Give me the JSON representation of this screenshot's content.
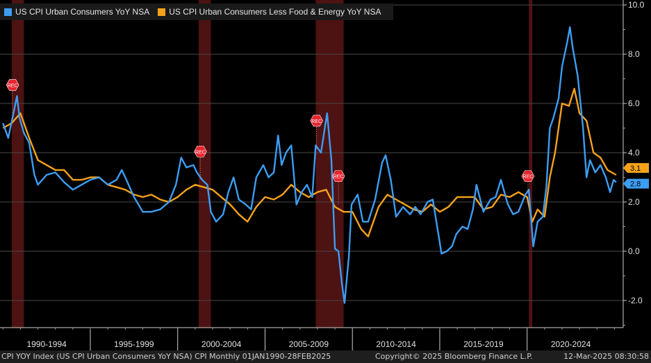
{
  "chart_data": {
    "type": "line",
    "title": "",
    "xlabel": "",
    "ylabel": "",
    "xlim": [
      1989.83,
      2025.5
    ],
    "ylim": [
      -3.1,
      10.2
    ],
    "y_ticks": [
      "-2.0",
      "0.0",
      "2.0",
      "4.0",
      "6.0",
      "8.0",
      "10.0"
    ],
    "y_tick_values": [
      -2,
      0,
      2,
      4,
      6,
      8,
      10
    ],
    "x_tick_labels": [
      "1990-1994",
      "1995-1999",
      "2000-2004",
      "2005-2009",
      "2010-2014",
      "2015-2019",
      "2020-2024"
    ],
    "x_periods": [
      [
        1990,
        1995
      ],
      [
        1995,
        2000
      ],
      [
        2000,
        2005
      ],
      [
        2005,
        2010
      ],
      [
        2010,
        2015
      ],
      [
        2015,
        2020
      ],
      [
        2020,
        2025
      ]
    ],
    "grid": true,
    "legend_position": "top-left",
    "recessions": [
      {
        "start": 1990.5,
        "end": 1991.2,
        "marker_x": 1990.55,
        "marker_y": 6.75,
        "label": "REC"
      },
      {
        "start": 2001.2,
        "end": 2001.9,
        "marker_x": 2001.3,
        "marker_y": 4.05,
        "label": "REC"
      },
      {
        "start": 2007.9,
        "end": 2009.5,
        "marker_x": 2007.95,
        "marker_y": 5.3,
        "label": "REC"
      },
      {
        "start": 2007.9,
        "end": 2009.5,
        "marker_x": 2009.2,
        "marker_y": 3.05,
        "label": "REC"
      },
      {
        "start": 2020.1,
        "end": 2020.3,
        "marker_x": 2020.05,
        "marker_y": 3.05,
        "label": "REC"
      }
    ],
    "series": [
      {
        "name": "US CPI Urban Consumers YoY NSA",
        "color": "#3d9df2",
        "last_value": "2.8",
        "x": [
          1990.0,
          1990.3,
          1990.6,
          1990.8,
          1990.95,
          1991.2,
          1991.5,
          1991.8,
          1992.0,
          1992.5,
          1993.0,
          1993.5,
          1994.0,
          1994.5,
          1995.0,
          1995.5,
          1996.0,
          1996.5,
          1996.8,
          1997.0,
          1997.5,
          1998.0,
          1998.5,
          1999.0,
          1999.5,
          1999.9,
          2000.2,
          2000.5,
          2000.9,
          2001.1,
          2001.4,
          2001.7,
          2001.9,
          2002.2,
          2002.6,
          2002.9,
          2003.2,
          2003.5,
          2003.9,
          2004.2,
          2004.5,
          2004.9,
          2005.2,
          2005.5,
          2005.75,
          2005.95,
          2006.2,
          2006.5,
          2006.8,
          2007.1,
          2007.4,
          2007.7,
          2007.9,
          2008.2,
          2008.55,
          2008.8,
          2009.0,
          2009.2,
          2009.4,
          2009.55,
          2009.8,
          2009.95,
          2010.3,
          2010.6,
          2010.9,
          2011.3,
          2011.7,
          2011.9,
          2012.2,
          2012.5,
          2012.9,
          2013.3,
          2013.6,
          2013.9,
          2014.3,
          2014.6,
          2014.9,
          2015.1,
          2015.4,
          2015.7,
          2015.95,
          2016.3,
          2016.6,
          2016.9,
          2017.1,
          2017.5,
          2017.9,
          2018.2,
          2018.5,
          2018.9,
          2019.2,
          2019.5,
          2019.9,
          2020.1,
          2020.35,
          2020.6,
          2020.9,
          2021.1,
          2021.3,
          2021.5,
          2021.8,
          2022.0,
          2022.3,
          2022.45,
          2022.6,
          2022.9,
          2023.2,
          2023.4,
          2023.6,
          2023.9,
          2024.2,
          2024.5,
          2024.75,
          2024.95,
          2025.1
        ],
        "values": [
          5.2,
          4.6,
          5.6,
          6.3,
          5.4,
          4.8,
          4.4,
          3.1,
          2.7,
          3.1,
          3.2,
          2.8,
          2.5,
          2.7,
          2.9,
          3.0,
          2.7,
          2.9,
          3.3,
          3.0,
          2.2,
          1.6,
          1.6,
          1.7,
          2.0,
          2.7,
          3.8,
          3.4,
          3.5,
          3.2,
          2.9,
          2.7,
          1.6,
          1.2,
          1.5,
          2.4,
          3.0,
          2.1,
          1.9,
          1.7,
          3.0,
          3.5,
          3.0,
          3.2,
          4.7,
          3.5,
          4.0,
          4.3,
          1.9,
          2.4,
          2.7,
          2.2,
          4.3,
          4.0,
          5.6,
          3.7,
          0.1,
          0.0,
          -1.3,
          -2.1,
          -0.2,
          1.9,
          2.3,
          1.2,
          1.2,
          2.1,
          3.6,
          3.9,
          2.9,
          1.4,
          1.8,
          1.5,
          1.8,
          1.5,
          2.0,
          2.1,
          0.8,
          -0.1,
          0.0,
          0.2,
          0.7,
          1.0,
          0.9,
          1.7,
          2.7,
          1.6,
          2.1,
          2.2,
          2.9,
          1.9,
          1.5,
          1.6,
          2.3,
          2.5,
          0.2,
          1.2,
          1.4,
          2.6,
          5.0,
          5.4,
          6.2,
          7.5,
          8.5,
          9.1,
          8.3,
          7.1,
          5.0,
          3.0,
          3.7,
          3.2,
          3.5,
          3.0,
          2.4,
          2.9,
          2.8
        ]
      },
      {
        "name": "US CPI Urban Consumers Less Food & Energy YoY NSA",
        "color": "#f5a21b",
        "last_value": "3.1",
        "x": [
          1990.0,
          1990.5,
          1991.0,
          1991.5,
          1992.0,
          1992.5,
          1993.0,
          1993.5,
          1994.0,
          1994.5,
          1995.0,
          1995.5,
          1996.0,
          1996.5,
          1997.0,
          1997.5,
          1998.0,
          1998.5,
          1999.0,
          1999.5,
          2000.0,
          2000.5,
          2001.0,
          2001.5,
          2002.0,
          2002.5,
          2003.0,
          2003.5,
          2004.0,
          2004.5,
          2005.0,
          2005.5,
          2006.0,
          2006.5,
          2007.0,
          2007.5,
          2008.0,
          2008.5,
          2009.0,
          2009.5,
          2010.0,
          2010.5,
          2010.9,
          2011.5,
          2012.0,
          2012.5,
          2013.0,
          2013.5,
          2014.0,
          2014.5,
          2015.0,
          2015.5,
          2016.0,
          2016.5,
          2017.0,
          2017.5,
          2018.0,
          2018.5,
          2019.0,
          2019.5,
          2020.0,
          2020.3,
          2020.6,
          2021.0,
          2021.3,
          2021.6,
          2022.0,
          2022.4,
          2022.7,
          2023.0,
          2023.4,
          2023.8,
          2024.2,
          2024.6,
          2025.1
        ],
        "values": [
          5.0,
          5.2,
          5.6,
          4.6,
          3.7,
          3.5,
          3.3,
          3.3,
          2.9,
          2.9,
          3.0,
          3.0,
          2.7,
          2.6,
          2.5,
          2.3,
          2.2,
          2.3,
          2.1,
          2.0,
          2.2,
          2.5,
          2.7,
          2.6,
          2.5,
          2.2,
          1.9,
          1.5,
          1.2,
          1.8,
          2.2,
          2.1,
          2.3,
          2.7,
          2.4,
          2.2,
          2.4,
          2.5,
          1.8,
          1.6,
          1.6,
          0.9,
          0.6,
          1.8,
          2.3,
          2.1,
          1.9,
          1.7,
          1.6,
          1.9,
          1.6,
          1.8,
          2.2,
          2.2,
          2.2,
          1.7,
          1.8,
          2.3,
          2.2,
          2.4,
          2.2,
          1.2,
          1.7,
          1.4,
          3.0,
          4.0,
          6.0,
          5.9,
          6.6,
          5.6,
          5.3,
          4.0,
          3.8,
          3.3,
          3.1
        ]
      }
    ]
  },
  "footer": {
    "left": "CPI YOY Index (US CPI Urban Consumers YoY NSA) CPI  Monthly 01JAN1990-28FEB2025",
    "middle": "Copyright© 2025 Bloomberg Finance L.P.",
    "right": "12-Mar-2025 08:30:58"
  }
}
